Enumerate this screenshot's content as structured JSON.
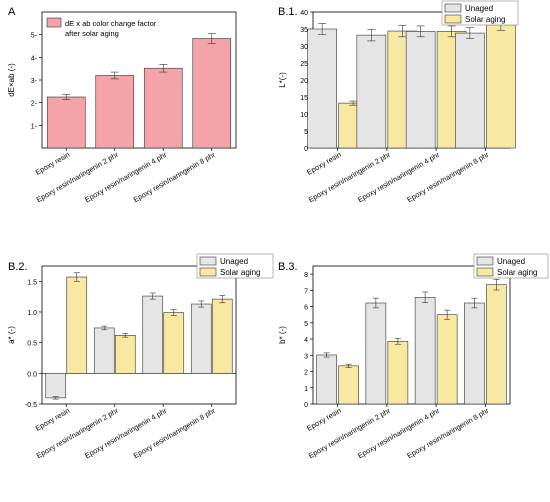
{
  "chart_data": [
    {
      "id": "A",
      "type": "bar",
      "panel_label": "A",
      "title": "",
      "xlabel": "",
      "ylabel": "dE×ab (-)",
      "ylim": [
        0,
        6
      ],
      "yticks": [
        1,
        2,
        3,
        4,
        5
      ],
      "ytick_labels": [
        "1-",
        "2-",
        "3-",
        "4-",
        "5-"
      ],
      "grid": false,
      "legend": "top-left",
      "categories": [
        "Epoxy resin",
        "Epoxy resin/naringenin 2 phr",
        "Epoxy resin/naringenin 4 phr",
        "Epoxy resin/naringenin 8 phr"
      ],
      "series": [
        {
          "name": "dE x ab color change factor after solar aging",
          "legend_lines": [
            "dE x ab color change factor",
            "after solar aging"
          ],
          "color": "#f4a3a8",
          "values": [
            2.25,
            3.2,
            3.52,
            4.83
          ],
          "errors": [
            0.12,
            0.15,
            0.17,
            0.22
          ]
        }
      ]
    },
    {
      "id": "B1",
      "type": "bar",
      "panel_label": "B.1.",
      "title": "",
      "xlabel": "",
      "ylabel": "L*(-)",
      "ylim": [
        0,
        40
      ],
      "yticks": [
        0,
        5,
        10,
        15,
        20,
        25,
        30,
        35,
        40
      ],
      "ytick_labels": [
        "0",
        "5",
        "10",
        "15",
        "20",
        "25",
        "30",
        "35",
        "40"
      ],
      "grid": false,
      "legend": "top-right",
      "categories": [
        "Epoxy resin",
        "Epoxy resin/naringenin 2 phr",
        "Epoxy resin/naringenin 4 phr",
        "Epoxy resin/naringenin 8 phr"
      ],
      "series": [
        {
          "name": "Unaged",
          "color": "#e5e5e5",
          "values": [
            35.0,
            33.2,
            34.3,
            33.8
          ],
          "errors": [
            1.6,
            1.7,
            1.6,
            1.6
          ]
        },
        {
          "name": "Solar aging",
          "color": "#f9e8a2",
          "values": [
            13.2,
            34.4,
            34.3,
            36.2
          ],
          "errors": [
            0.6,
            1.7,
            1.6,
            1.6
          ]
        }
      ]
    },
    {
      "id": "B2",
      "type": "bar",
      "panel_label": "B.2.",
      "title": "",
      "xlabel": "",
      "ylabel": "a* (-)",
      "ylim": [
        -0.5,
        1.75
      ],
      "yticks": [
        -0.5,
        0.0,
        0.5,
        1.0,
        1.5
      ],
      "ytick_labels": [
        "-0.5",
        "0.0",
        "0.5",
        "1.0",
        "1.5"
      ],
      "grid": false,
      "legend": "top-right",
      "categories": [
        "Epoxy resin",
        "Epoxy resin/naringenin 2 phr",
        "Epoxy resin/naringenin 4 phr",
        "Epoxy resin/naringenin 8 phr"
      ],
      "series": [
        {
          "name": "Unaged",
          "color": "#e5e5e5",
          "values": [
            -0.4,
            0.74,
            1.26,
            1.13
          ],
          "errors": [
            0.02,
            0.03,
            0.05,
            0.05
          ]
        },
        {
          "name": "Solar aging",
          "color": "#f9e8a2",
          "values": [
            1.57,
            0.62,
            0.99,
            1.21
          ],
          "errors": [
            0.07,
            0.03,
            0.05,
            0.06
          ]
        }
      ]
    },
    {
      "id": "B3",
      "type": "bar",
      "panel_label": "B.3.",
      "title": "",
      "xlabel": "",
      "ylabel": "b* (-)",
      "ylim": [
        0,
        8.5
      ],
      "yticks": [
        0,
        1,
        2,
        3,
        4,
        5,
        6,
        7,
        8
      ],
      "ytick_labels": [
        "0",
        "1",
        "2",
        "3",
        "4",
        "5",
        "6",
        "7",
        "8"
      ],
      "grid": false,
      "legend": "top-right",
      "categories": [
        "Epoxy resin",
        "Epoxy resin/naringenin 2 phr",
        "Epoxy resin/naringenin 4 phr",
        "Epoxy resin/naringenin 8 phr"
      ],
      "series": [
        {
          "name": "Unaged",
          "color": "#e5e5e5",
          "values": [
            3.02,
            6.22,
            6.57,
            6.22
          ],
          "errors": [
            0.13,
            0.3,
            0.33,
            0.3
          ]
        },
        {
          "name": "Solar aging",
          "color": "#f9e8a2",
          "values": [
            2.35,
            3.86,
            5.5,
            7.35
          ],
          "errors": [
            0.1,
            0.18,
            0.28,
            0.33
          ]
        }
      ]
    }
  ]
}
